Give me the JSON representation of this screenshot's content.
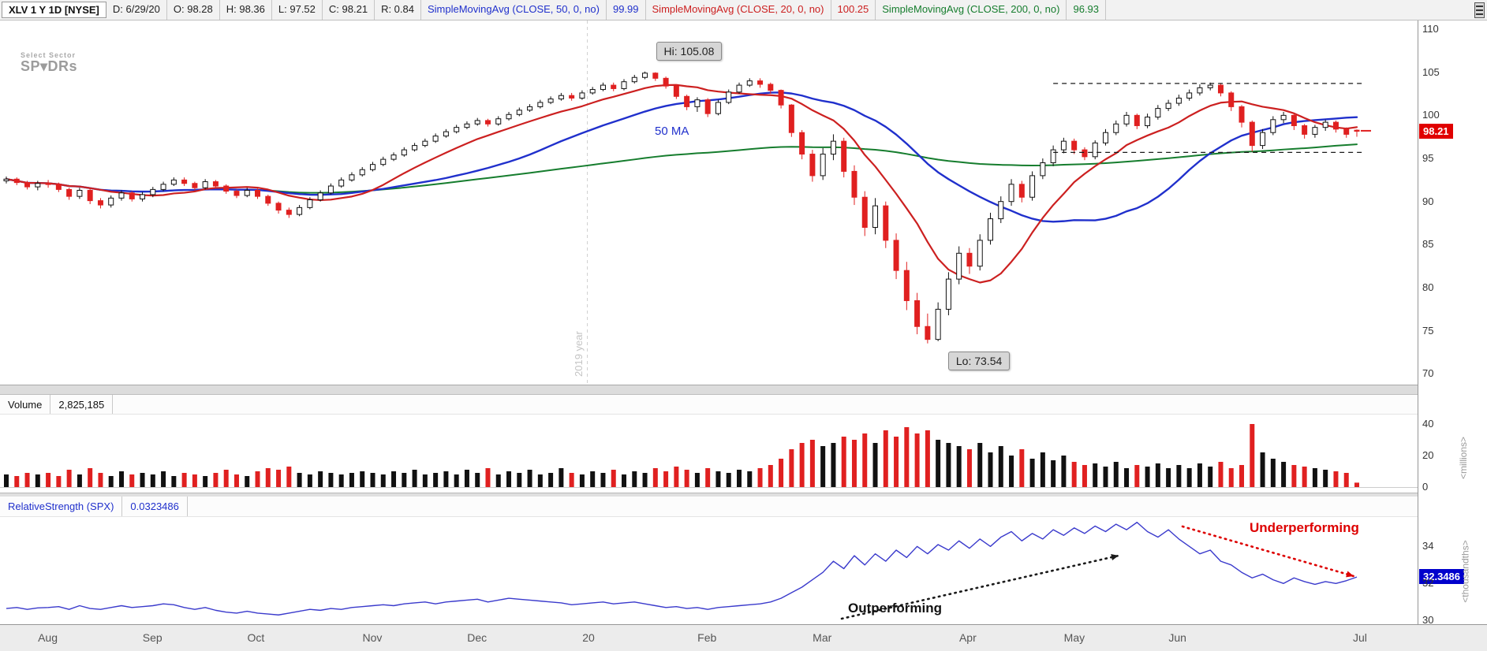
{
  "toolbar": {
    "symbol": "XLV 1 Y 1D [NYSE]",
    "ohlc": [
      {
        "label": "D:",
        "value": "6/29/20"
      },
      {
        "label": "O:",
        "value": "98.28"
      },
      {
        "label": "H:",
        "value": "98.36"
      },
      {
        "label": "L:",
        "value": "97.52"
      },
      {
        "label": "C:",
        "value": "98.21"
      },
      {
        "label": "R:",
        "value": "0.84"
      }
    ],
    "indicators": [
      {
        "label": "SimpleMovingAvg (CLOSE, 50, 0, no)",
        "value": "99.99",
        "color": "#2030cc"
      },
      {
        "label": "SimpleMovingAvg (CLOSE, 20, 0, no)",
        "value": "100.25",
        "color": "#cc2020"
      },
      {
        "label": "SimpleMovingAvg (CLOSE, 200, 0, no)",
        "value": "96.93",
        "color": "#167d2e"
      }
    ]
  },
  "watermark": {
    "line1": "Select Sector",
    "line2": "SP▾DRs"
  },
  "price_pane": {
    "ma_label": "50 MA",
    "hi_label": "Hi: 105.08",
    "lo_label": "Lo: 73.54",
    "year_label": "2019 year",
    "year_line_i": 55.5,
    "last_price": "98.21",
    "axis_ticks": [
      110,
      105,
      100,
      95,
      90,
      85,
      80,
      75,
      70
    ],
    "range_lines": {
      "upper": 103.7,
      "lower": 95.7
    }
  },
  "volume_pane": {
    "title": "Volume",
    "value": "2,825,185",
    "axis_ticks": [
      40,
      20,
      0
    ],
    "unit_label": "<millions>"
  },
  "rs_pane": {
    "title": "RelativeStrength (SPX)",
    "value": "0.0323486",
    "badge": "32.3486",
    "axis_ticks": [
      34,
      32,
      30
    ],
    "unit_label": "<thousandths>",
    "annotations": {
      "up": "Outperforming",
      "down": "Underperforming"
    }
  },
  "x_axis": {
    "ticks": [
      {
        "label": "Aug",
        "i": 4
      },
      {
        "label": "Sep",
        "i": 14
      },
      {
        "label": "Oct",
        "i": 24
      },
      {
        "label": "Nov",
        "i": 35
      },
      {
        "label": "Dec",
        "i": 45
      },
      {
        "label": "20",
        "i": 56
      },
      {
        "label": "Feb",
        "i": 67
      },
      {
        "label": "Mar",
        "i": 78
      },
      {
        "label": "Apr",
        "i": 92
      },
      {
        "label": "May",
        "i": 102
      },
      {
        "label": "Jun",
        "i": 112
      },
      {
        "label": "Jul",
        "i": 129.6
      }
    ]
  },
  "chart_data": {
    "type": "candlestick",
    "symbol": "XLV",
    "timeframe": "1 Y 1D",
    "hi": 105.08,
    "lo": 73.54,
    "last_close": 98.21,
    "price_axis_range": [
      70,
      110
    ],
    "volume_axis_range_millions": [
      0,
      40
    ],
    "rs_axis_ticks": [
      34,
      32,
      30
    ],
    "colors": {
      "up": "#111111",
      "down": "#e02020",
      "rs_line": "#3a3acc",
      "annotation_up": "#1a1a1a",
      "annotation_down": "#dd0000"
    },
    "moving_averages": [
      {
        "name": "SMA50",
        "window_candles": 25,
        "color": "#2030cc"
      },
      {
        "name": "SMA20",
        "window_candles": 10,
        "color": "#cc2020"
      },
      {
        "name": "SMA200",
        "window_candles": 100,
        "color": "#167d2e"
      }
    ],
    "candles": [
      [
        92.4,
        92.9,
        92.1,
        92.6
      ],
      [
        92.6,
        92.8,
        91.9,
        92.2
      ],
      [
        92.2,
        92.4,
        91.4,
        91.7
      ],
      [
        91.7,
        92.4,
        91.3,
        92.1
      ],
      [
        92.1,
        92.5,
        91.6,
        92.0
      ],
      [
        92.0,
        92.2,
        91.1,
        91.4
      ],
      [
        91.4,
        91.6,
        90.2,
        90.6
      ],
      [
        90.6,
        91.6,
        90.3,
        91.3
      ],
      [
        91.3,
        91.5,
        89.7,
        90.1
      ],
      [
        90.1,
        90.4,
        89.2,
        89.6
      ],
      [
        89.6,
        90.7,
        89.3,
        90.4
      ],
      [
        90.4,
        91.3,
        90.1,
        91.0
      ],
      [
        91.0,
        91.2,
        90.0,
        90.3
      ],
      [
        90.3,
        91.1,
        90.0,
        90.8
      ],
      [
        90.8,
        91.7,
        90.5,
        91.4
      ],
      [
        91.4,
        92.3,
        91.2,
        92.0
      ],
      [
        92.0,
        92.8,
        91.8,
        92.5
      ],
      [
        92.5,
        92.8,
        91.8,
        92.1
      ],
      [
        92.1,
        92.3,
        91.3,
        91.6
      ],
      [
        91.6,
        92.6,
        91.4,
        92.3
      ],
      [
        92.3,
        92.5,
        91.5,
        91.8
      ],
      [
        91.8,
        92.0,
        90.9,
        91.2
      ],
      [
        91.2,
        91.4,
        90.4,
        90.7
      ],
      [
        90.7,
        91.6,
        90.5,
        91.3
      ],
      [
        91.3,
        91.5,
        90.3,
        90.6
      ],
      [
        90.6,
        90.8,
        89.5,
        89.8
      ],
      [
        89.8,
        90.0,
        88.6,
        89.0
      ],
      [
        89.0,
        89.3,
        88.1,
        88.5
      ],
      [
        88.5,
        89.6,
        88.3,
        89.3
      ],
      [
        89.3,
        90.5,
        89.1,
        90.2
      ],
      [
        90.2,
        91.3,
        90.0,
        91.0
      ],
      [
        91.0,
        92.1,
        90.8,
        91.8
      ],
      [
        91.8,
        92.8,
        91.6,
        92.5
      ],
      [
        92.5,
        93.4,
        92.3,
        93.1
      ],
      [
        93.1,
        94.0,
        92.9,
        93.7
      ],
      [
        93.7,
        94.6,
        93.5,
        94.3
      ],
      [
        94.3,
        95.2,
        94.1,
        94.9
      ],
      [
        94.9,
        95.7,
        94.7,
        95.4
      ],
      [
        95.4,
        96.3,
        95.2,
        96.0
      ],
      [
        96.0,
        96.8,
        95.8,
        96.5
      ],
      [
        96.5,
        97.3,
        96.3,
        97.0
      ],
      [
        97.0,
        97.9,
        96.8,
        97.6
      ],
      [
        97.6,
        98.4,
        97.4,
        98.1
      ],
      [
        98.1,
        98.9,
        97.9,
        98.6
      ],
      [
        98.6,
        99.3,
        98.4,
        99.0
      ],
      [
        99.0,
        99.7,
        98.8,
        99.4
      ],
      [
        99.4,
        99.6,
        98.7,
        99.0
      ],
      [
        99.0,
        99.9,
        98.8,
        99.6
      ],
      [
        99.6,
        100.4,
        99.4,
        100.1
      ],
      [
        100.1,
        100.9,
        99.9,
        100.6
      ],
      [
        100.6,
        101.3,
        100.4,
        101.0
      ],
      [
        101.0,
        101.8,
        100.8,
        101.5
      ],
      [
        101.5,
        102.2,
        101.3,
        101.9
      ],
      [
        101.9,
        102.6,
        101.7,
        102.3
      ],
      [
        102.3,
        102.6,
        101.7,
        102.0
      ],
      [
        102.0,
        102.9,
        101.8,
        102.6
      ],
      [
        102.6,
        103.3,
        102.4,
        103.0
      ],
      [
        103.0,
        103.8,
        102.8,
        103.5
      ],
      [
        103.5,
        103.8,
        102.8,
        103.1
      ],
      [
        103.1,
        104.2,
        102.9,
        103.9
      ],
      [
        103.9,
        104.7,
        103.7,
        104.4
      ],
      [
        104.4,
        105.08,
        104.2,
        104.9
      ],
      [
        104.9,
        105.0,
        104.0,
        104.3
      ],
      [
        104.3,
        104.5,
        103.1,
        103.4
      ],
      [
        103.4,
        103.6,
        101.9,
        102.2
      ],
      [
        102.2,
        102.4,
        100.6,
        101.0
      ],
      [
        101.0,
        102.1,
        100.4,
        101.8
      ],
      [
        101.8,
        102.0,
        99.8,
        100.2
      ],
      [
        100.2,
        101.8,
        100.0,
        101.5
      ],
      [
        101.5,
        103.0,
        101.3,
        102.7
      ],
      [
        102.7,
        103.8,
        102.5,
        103.5
      ],
      [
        103.5,
        104.3,
        103.3,
        104.0
      ],
      [
        104.0,
        104.3,
        103.2,
        103.6
      ],
      [
        103.6,
        103.8,
        102.5,
        102.9
      ],
      [
        102.9,
        103.0,
        100.8,
        101.2
      ],
      [
        101.2,
        101.3,
        97.5,
        98.0
      ],
      [
        98.0,
        98.3,
        94.9,
        95.5
      ],
      [
        95.5,
        96.0,
        92.3,
        93.0
      ],
      [
        93.0,
        96.2,
        92.5,
        95.5
      ],
      [
        95.5,
        97.8,
        94.8,
        97.0
      ],
      [
        97.0,
        97.4,
        92.8,
        93.5
      ],
      [
        93.5,
        94.2,
        89.6,
        90.5
      ],
      [
        90.5,
        91.2,
        86.0,
        87.0
      ],
      [
        87.0,
        90.4,
        86.2,
        89.5
      ],
      [
        89.5,
        90.0,
        84.6,
        85.5
      ],
      [
        85.5,
        86.3,
        81.0,
        82.0
      ],
      [
        82.0,
        83.0,
        77.4,
        78.5
      ],
      [
        78.5,
        79.4,
        74.6,
        75.5
      ],
      [
        75.5,
        77.0,
        73.54,
        74.0
      ],
      [
        74.0,
        78.3,
        73.8,
        77.5
      ],
      [
        77.5,
        81.8,
        76.8,
        81.0
      ],
      [
        81.0,
        84.8,
        80.4,
        84.0
      ],
      [
        84.0,
        84.6,
        81.6,
        82.5
      ],
      [
        82.5,
        86.2,
        82.0,
        85.5
      ],
      [
        85.5,
        88.7,
        85.0,
        88.0
      ],
      [
        88.0,
        90.6,
        87.5,
        90.0
      ],
      [
        90.0,
        92.6,
        89.5,
        92.0
      ],
      [
        92.0,
        92.4,
        89.9,
        90.5
      ],
      [
        90.5,
        93.5,
        90.1,
        93.0
      ],
      [
        93.0,
        95.0,
        92.6,
        94.5
      ],
      [
        94.5,
        96.5,
        94.1,
        96.0
      ],
      [
        96.0,
        97.4,
        95.6,
        97.0
      ],
      [
        97.0,
        97.3,
        95.5,
        96.0
      ],
      [
        96.0,
        96.3,
        94.8,
        95.2
      ],
      [
        95.2,
        97.1,
        94.9,
        96.8
      ],
      [
        96.8,
        98.4,
        96.5,
        98.0
      ],
      [
        98.0,
        99.4,
        97.7,
        99.0
      ],
      [
        99.0,
        100.4,
        98.7,
        100.0
      ],
      [
        100.0,
        100.2,
        98.4,
        98.8
      ],
      [
        98.8,
        100.2,
        98.5,
        99.8
      ],
      [
        99.8,
        101.2,
        99.5,
        100.8
      ],
      [
        100.8,
        101.8,
        100.5,
        101.4
      ],
      [
        101.4,
        102.4,
        101.1,
        102.0
      ],
      [
        102.0,
        103.0,
        101.7,
        102.6
      ],
      [
        102.6,
        103.6,
        102.3,
        103.2
      ],
      [
        103.2,
        103.8,
        102.9,
        103.5
      ],
      [
        103.5,
        103.7,
        102.2,
        102.6
      ],
      [
        102.6,
        102.8,
        100.5,
        101.0
      ],
      [
        101.0,
        101.2,
        98.6,
        99.2
      ],
      [
        99.2,
        99.4,
        95.8,
        96.5
      ],
      [
        96.5,
        98.4,
        96.1,
        98.0
      ],
      [
        98.0,
        99.9,
        97.7,
        99.5
      ],
      [
        99.5,
        100.4,
        99.1,
        100.0
      ],
      [
        100.0,
        100.2,
        98.3,
        98.8
      ],
      [
        98.8,
        99.0,
        97.3,
        97.8
      ],
      [
        97.8,
        98.9,
        97.4,
        98.6
      ],
      [
        98.6,
        99.5,
        98.2,
        99.2
      ],
      [
        99.2,
        99.4,
        98.0,
        98.4
      ],
      [
        98.4,
        98.6,
        97.4,
        97.8
      ],
      [
        98.28,
        98.36,
        97.52,
        98.21
      ]
    ],
    "volumes": [
      8,
      7,
      9,
      8,
      9,
      7,
      11,
      8,
      12,
      9,
      7,
      10,
      8,
      9,
      8,
      10,
      7,
      9,
      8,
      7,
      9,
      11,
      8,
      7,
      10,
      12,
      11,
      13,
      9,
      8,
      10,
      9,
      8,
      9,
      10,
      9,
      8,
      10,
      9,
      11,
      8,
      9,
      10,
      8,
      11,
      9,
      12,
      8,
      10,
      9,
      11,
      8,
      9,
      12,
      9,
      8,
      10,
      9,
      11,
      8,
      10,
      9,
      12,
      10,
      13,
      11,
      9,
      12,
      10,
      9,
      11,
      10,
      12,
      14,
      18,
      24,
      28,
      30,
      26,
      28,
      32,
      30,
      34,
      28,
      36,
      32,
      38,
      34,
      36,
      30,
      28,
      26,
      24,
      28,
      22,
      26,
      20,
      24,
      18,
      22,
      17,
      20,
      16,
      14,
      15,
      13,
      16,
      12,
      14,
      13,
      15,
      12,
      14,
      12,
      15,
      13,
      16,
      12,
      14,
      40,
      22,
      18,
      16,
      14,
      13,
      12,
      11,
      10,
      9,
      2.8
    ],
    "relative_strength": [
      30.65,
      30.7,
      30.6,
      30.68,
      30.7,
      30.75,
      30.6,
      30.8,
      30.65,
      30.6,
      30.7,
      30.8,
      30.7,
      30.75,
      30.8,
      30.9,
      30.85,
      30.7,
      30.6,
      30.7,
      30.55,
      30.45,
      30.4,
      30.5,
      30.4,
      30.35,
      30.3,
      30.4,
      30.5,
      30.6,
      30.55,
      30.65,
      30.6,
      30.7,
      30.75,
      30.8,
      30.85,
      30.8,
      30.9,
      30.95,
      31.0,
      30.9,
      31.0,
      31.05,
      31.1,
      31.15,
      31.0,
      31.1,
      31.2,
      31.15,
      31.1,
      31.05,
      31.0,
      30.95,
      30.85,
      30.9,
      30.95,
      31.0,
      30.9,
      30.95,
      31.0,
      30.9,
      30.8,
      30.7,
      30.75,
      30.65,
      30.7,
      30.6,
      30.7,
      30.75,
      30.8,
      30.85,
      30.9,
      31.0,
      31.2,
      31.5,
      31.8,
      32.2,
      32.6,
      33.2,
      32.8,
      33.5,
      33.0,
      33.6,
      33.2,
      33.8,
      33.4,
      34.0,
      33.6,
      34.1,
      33.8,
      34.3,
      33.9,
      34.4,
      34.0,
      34.5,
      34.8,
      34.3,
      34.7,
      34.4,
      34.9,
      34.6,
      35.0,
      34.7,
      35.1,
      34.8,
      35.2,
      34.9,
      35.3,
      34.8,
      34.5,
      34.9,
      34.4,
      34.0,
      33.6,
      33.8,
      33.2,
      33.0,
      32.6,
      32.3,
      32.5,
      32.2,
      32.0,
      32.3,
      32.1,
      31.95,
      32.1,
      32.0,
      32.15,
      32.3486
    ]
  }
}
